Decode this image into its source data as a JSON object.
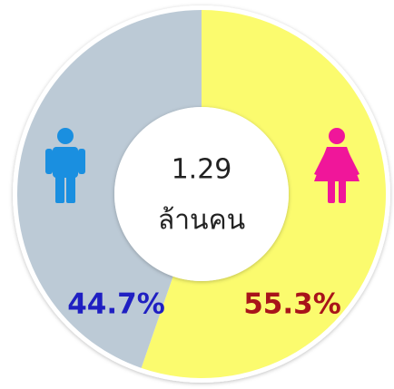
{
  "chart_data": {
    "type": "pie",
    "donut": true,
    "values": [
      55.3,
      44.7
    ],
    "value_labels": [
      "55.3%",
      "44.7%"
    ],
    "colors": [
      "#fbfb6e",
      "#bccad6"
    ],
    "label_colors": [
      "#a8141a",
      "#1f1fc2"
    ],
    "center_text": [
      "1.29",
      "ล้านคน"
    ]
  }
}
